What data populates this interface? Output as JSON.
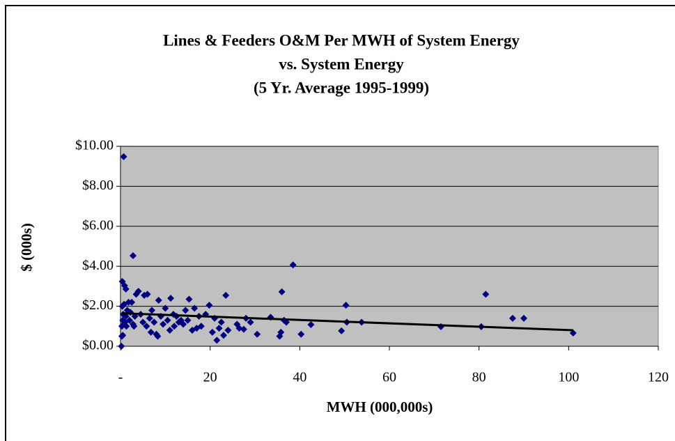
{
  "chart_data": {
    "type": "scatter",
    "title": [
      "Lines & Feeders O&M Per MWH of System Energy",
      "vs. System Energy",
      "(5 Yr. Average 1995-1999)"
    ],
    "x_label": "MWH (000,000s)",
    "y_label": "$ (000s)",
    "xlim": [
      0,
      120
    ],
    "ylim": [
      0,
      10
    ],
    "xticks": [
      {
        "value": 0,
        "label": "-"
      },
      20,
      40,
      60,
      80,
      100,
      120
    ],
    "yticks": [
      {
        "value": 0,
        "label": "$0.00"
      },
      {
        "value": 2,
        "label": "$2.00"
      },
      {
        "value": 4,
        "label": "$4.00"
      },
      {
        "value": 6,
        "label": "$6.00"
      },
      {
        "value": 8,
        "label": "$8.00"
      },
      {
        "value": 10,
        "label": "$10.00"
      }
    ],
    "grid": true,
    "plot_background": "#c0c0c0",
    "series": [
      {
        "color": "#000080",
        "x": [
          0.2,
          0.3,
          0.5,
          0.3,
          0.5,
          0.6,
          0.4,
          0.8,
          1.0,
          1.2,
          1.5,
          1.8,
          1.3,
          2.0,
          2.2,
          2.5,
          2.8,
          3.0,
          3.2,
          3.5,
          4.0,
          4.5,
          5.0,
          5.3,
          5.8,
          6.0,
          6.5,
          6.8,
          7.0,
          7.5,
          8.0,
          8.3,
          8.5,
          9.0,
          9.5,
          10.0,
          10.5,
          11.0,
          11.2,
          11.8,
          12.0,
          12.5,
          13.0,
          13.5,
          14.0,
          14.5,
          15.0,
          15.3,
          16.0,
          16.5,
          17.0,
          17.5,
          18.0,
          19.0,
          19.8,
          20.5,
          21.0,
          21.5,
          22.0,
          22.5,
          23.0,
          23.5,
          24.0,
          26.0,
          26.5,
          27.5,
          28.0,
          29.0,
          30.5,
          33.5,
          35.5,
          35.8,
          36.0,
          36.5,
          37.0,
          38.5,
          40.3,
          42.5,
          2.8,
          0.7,
          0.4,
          0.9,
          1.2,
          49.3,
          50.3,
          50.5,
          53.8,
          71.5,
          80.5,
          81.5,
          87.5,
          90,
          101
        ],
        "values": [
          0.0,
          0.5,
          0.55,
          1.0,
          1.3,
          1.6,
          2.0,
          2.1,
          1.2,
          1.5,
          1.8,
          2.2,
          1.0,
          1.3,
          1.7,
          2.2,
          1.1,
          1.0,
          1.5,
          2.6,
          2.75,
          1.6,
          1.2,
          2.55,
          1.0,
          2.6,
          1.4,
          0.7,
          1.8,
          1.2,
          0.6,
          0.5,
          2.3,
          1.5,
          1.1,
          1.9,
          1.3,
          0.8,
          2.4,
          1.6,
          1.0,
          1.5,
          1.2,
          1.3,
          1.1,
          1.8,
          1.3,
          2.35,
          0.8,
          1.9,
          0.9,
          1.5,
          1.0,
          1.6,
          2.05,
          0.7,
          1.4,
          0.3,
          0.9,
          1.2,
          0.55,
          2.55,
          0.8,
          1.1,
          0.9,
          0.85,
          1.4,
          1.2,
          0.6,
          1.45,
          0.5,
          0.7,
          2.72,
          1.3,
          1.2,
          4.07,
          0.6,
          1.08,
          4.53,
          9.48,
          3.24,
          3.03,
          2.86,
          0.77,
          2.05,
          1.2,
          1.2,
          0.98,
          0.98,
          2.6,
          1.4,
          1.4,
          0.66
        ]
      }
    ],
    "trendline": {
      "color": "#000000",
      "x": [
        0.3,
        101
      ],
      "values": [
        1.65,
        0.8
      ]
    }
  }
}
